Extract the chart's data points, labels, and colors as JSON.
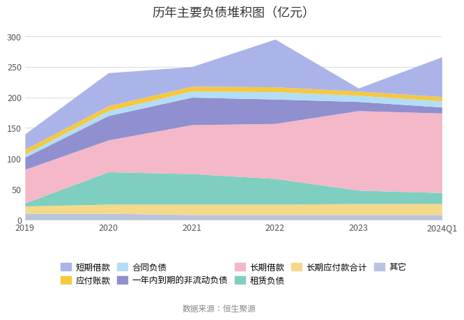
{
  "title": "历年主要负债堆积图（亿元）",
  "x_labels": [
    "2019",
    "2020",
    "2021",
    "2022",
    "2023",
    "2024Q1"
  ],
  "series": [
    {
      "name": "其它",
      "color": "#b8c4e0",
      "values": [
        10,
        10,
        8,
        8,
        8,
        8
      ]
    },
    {
      "name": "长期应付款合计",
      "color": "#f5d98a",
      "values": [
        12,
        15,
        17,
        17,
        18,
        18
      ]
    },
    {
      "name": "租赁负债",
      "color": "#7ecfc0",
      "values": [
        5,
        53,
        50,
        42,
        22,
        18
      ]
    },
    {
      "name": "长期借款",
      "color": "#f4b8c8",
      "values": [
        55,
        52,
        80,
        90,
        130,
        130
      ]
    },
    {
      "name": "一年内到期的非流动负债",
      "color": "#9090d0",
      "values": [
        20,
        40,
        45,
        40,
        15,
        10
      ]
    },
    {
      "name": "合同负债",
      "color": "#b3ddf5",
      "values": [
        5,
        8,
        10,
        12,
        10,
        10
      ]
    },
    {
      "name": "应付账款",
      "color": "#f5c842",
      "values": [
        8,
        8,
        8,
        8,
        7,
        7
      ]
    },
    {
      "name": "短期借款",
      "color": "#aab4e8",
      "values": [
        25,
        54,
        32,
        78,
        5,
        65
      ]
    }
  ],
  "ylim": [
    0,
    320
  ],
  "yticks": [
    0,
    50,
    100,
    150,
    200,
    250,
    300
  ],
  "source_text": "数据来源：恒生聚源",
  "background_color": "#ffffff",
  "grid_color": "#dddddd",
  "title_fontsize": 13,
  "legend_fontsize": 9,
  "tick_fontsize": 9,
  "legend_order": [
    "短期借款",
    "应付账款",
    "合同负债",
    "一年内到期的非流动负债",
    "长期借款",
    "租赁负债",
    "长期应付款合计",
    "其它"
  ]
}
